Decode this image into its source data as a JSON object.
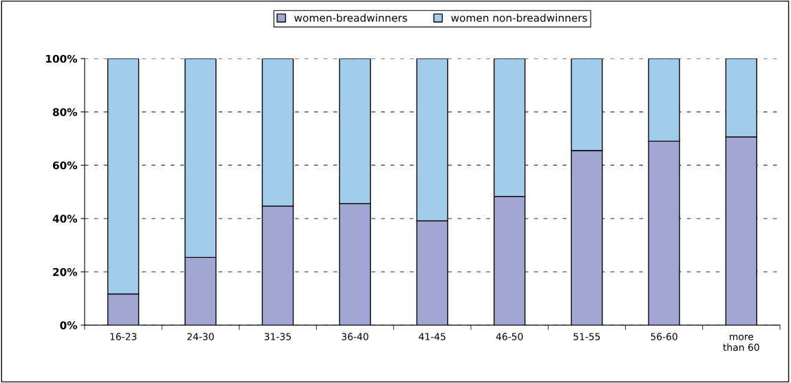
{
  "chart_data": {
    "type": "bar",
    "stacked": true,
    "categories": [
      "16-23",
      "24-30",
      "31-35",
      "36-40",
      "41-45",
      "46-50",
      "51-55",
      "56-60",
      "more\nthan 60"
    ],
    "series": [
      {
        "name": "women-breadwinners",
        "color": "#a2a6d2",
        "values": [
          11.7,
          25.4,
          44.7,
          45.6,
          39.1,
          48.3,
          65.5,
          69.0,
          70.6
        ]
      },
      {
        "name": "women non-breadwinners",
        "color": "#a1cdeb",
        "values": [
          88.3,
          74.6,
          55.3,
          54.4,
          60.9,
          51.7,
          34.5,
          31.0,
          29.4
        ]
      }
    ],
    "ylim": [
      0,
      100
    ],
    "yticks": [
      {
        "value": 0,
        "label": "0%"
      },
      {
        "value": 20,
        "label": "20%"
      },
      {
        "value": 40,
        "label": "40%"
      },
      {
        "value": 60,
        "label": "60%"
      },
      {
        "value": 80,
        "label": "80%"
      },
      {
        "value": 100,
        "label": "100%"
      }
    ],
    "grid": "y",
    "legend": "top"
  }
}
